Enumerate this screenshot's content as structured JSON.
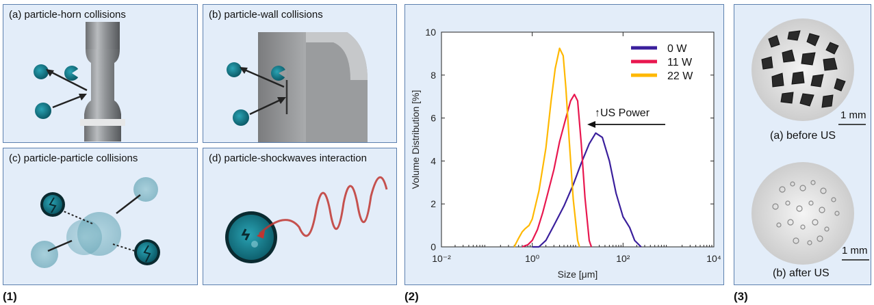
{
  "panel1": {
    "label": "(1)",
    "a_title": "(a) particle-horn collisions",
    "b_title": "(b) particle-wall collisions",
    "c_title": "(c) particle-particle collisions",
    "d_title": "(d) particle-shockwaves interaction"
  },
  "panel2": {
    "label": "(2)"
  },
  "panel3": {
    "label": "(3)",
    "before_caption": "(a) before US",
    "after_caption": "(b) after US",
    "scale_before": "1 mm",
    "scale_after": "1 mm"
  },
  "chart_data": {
    "type": "line",
    "xlabel": "Size [μm]",
    "ylabel": "Volume Distribution [%]",
    "xscale": "log",
    "xlim": [
      0.01,
      10000
    ],
    "ylim": [
      0,
      10
    ],
    "xticks": [
      "10⁻²",
      "10⁰",
      "10²",
      "10⁴"
    ],
    "yticks": [
      0,
      2,
      4,
      6,
      8,
      10
    ],
    "annotation": "↑US Power",
    "legend_position": "top-right",
    "series": [
      {
        "name": "0 W",
        "color": "#3a1f9c",
        "x": [
          1,
          1.4,
          2,
          3,
          5,
          8,
          12,
          18,
          25,
          35,
          50,
          70,
          100,
          140,
          180,
          250
        ],
        "y": [
          0,
          0,
          0.3,
          1.0,
          1.9,
          2.9,
          3.9,
          4.8,
          5.3,
          5.1,
          4.0,
          2.5,
          1.4,
          0.9,
          0.3,
          0
        ]
      },
      {
        "name": "11 W",
        "color": "#e8174f",
        "x": [
          0.6,
          0.8,
          1.0,
          1.3,
          1.7,
          2.2,
          3,
          4,
          5.5,
          7,
          8.5,
          10,
          12,
          14.5,
          18,
          20
        ],
        "y": [
          0,
          0.1,
          0.3,
          0.8,
          1.6,
          2.5,
          3.6,
          4.9,
          6.0,
          6.8,
          7.1,
          6.8,
          4.8,
          2.3,
          0.3,
          0
        ]
      },
      {
        "name": "22 W",
        "color": "#ffb800",
        "x": [
          0.4,
          0.5,
          0.6,
          0.7,
          0.85,
          1.0,
          1.4,
          2.0,
          2.6,
          3.2,
          4.0,
          4.8,
          5.5,
          6.5,
          8,
          10,
          11
        ],
        "y": [
          0,
          0.4,
          0.7,
          0.85,
          1.0,
          1.3,
          2.6,
          4.6,
          6.8,
          8.3,
          9.25,
          8.9,
          7.4,
          5.0,
          2.2,
          0.3,
          0
        ]
      }
    ]
  }
}
